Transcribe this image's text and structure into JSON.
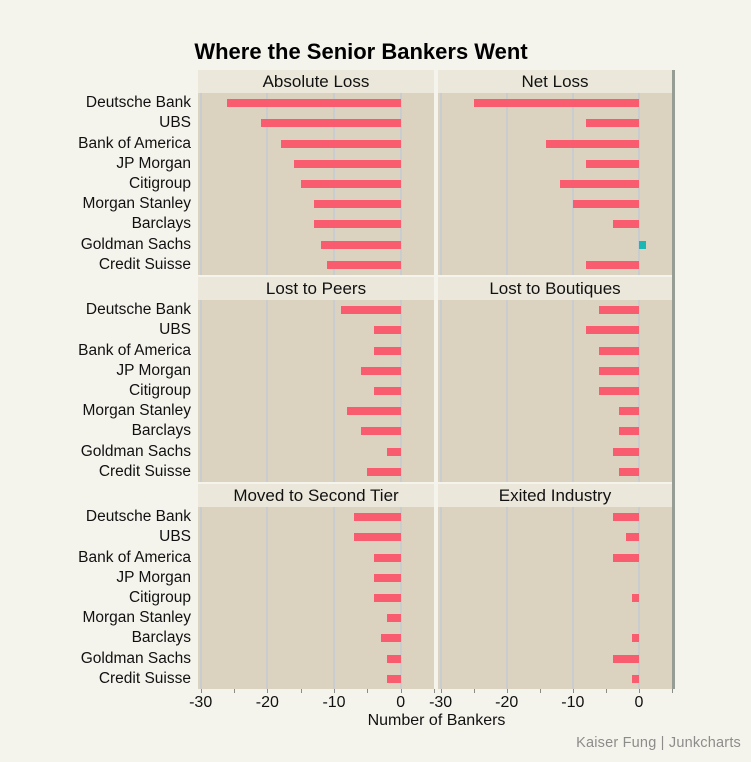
{
  "title": "Where the Senior Bankers Went",
  "footer": {
    "text": "Kaiser Fung | Junkcharts"
  },
  "colors": {
    "page_bg": "#F5F4EC",
    "plot_bg": "#DBD2C0",
    "header_bg": "#EBE8DB",
    "gridline": "#C9CDCF",
    "bar_negative": "#F95C6E",
    "bar_positive": "#1AB7B4",
    "frame_right": "#959D95",
    "credit_text": "#8C8C8A"
  },
  "chart_data": {
    "type": "bar",
    "orientation": "horizontal",
    "layout": "trellis 2 columns x 3 rows, shared bank axis on left, shared x axis on bottom",
    "title": "Where the Senior Bankers Went",
    "xlabel": "Number of Bankers",
    "xlim": [
      -30.4,
      5.0
    ],
    "x_major_ticks": [
      -30,
      -20,
      -10,
      0
    ],
    "x_minor_ticks": [
      -30,
      -25,
      -20,
      -15,
      -10,
      -5,
      0,
      5
    ],
    "grid": true,
    "legend": "none",
    "categories": [
      "Deutsche Bank",
      "UBS",
      "Bank of America",
      "JP Morgan",
      "Citigroup",
      "Morgan Stanley",
      "Barclays",
      "Goldman Sachs",
      "Credit Suisse"
    ],
    "panels": [
      {
        "label": "Absolute Loss",
        "values": [
          -26,
          -21,
          -18,
          -16,
          -15,
          -13,
          -13,
          -12,
          -11
        ]
      },
      {
        "label": "Net Loss",
        "values": [
          -25,
          -8,
          -14,
          -8,
          -12,
          -10,
          -4,
          1,
          -8
        ]
      },
      {
        "label": "Lost to Peers",
        "values": [
          -9,
          -4,
          -4,
          -6,
          -4,
          -8,
          -6,
          -2,
          -5
        ]
      },
      {
        "label": "Lost to Boutiques",
        "values": [
          -6,
          -8,
          -6,
          -6,
          -6,
          -3,
          -3,
          -4,
          -3
        ]
      },
      {
        "label": "Moved to Second Tier",
        "values": [
          -7,
          -7,
          -4,
          -4,
          -4,
          -2,
          -3,
          -2,
          -2
        ]
      },
      {
        "label": "Exited Industry",
        "values": [
          -4,
          -2,
          -4,
          0,
          -1,
          0,
          -1,
          -4,
          -1
        ]
      }
    ]
  }
}
